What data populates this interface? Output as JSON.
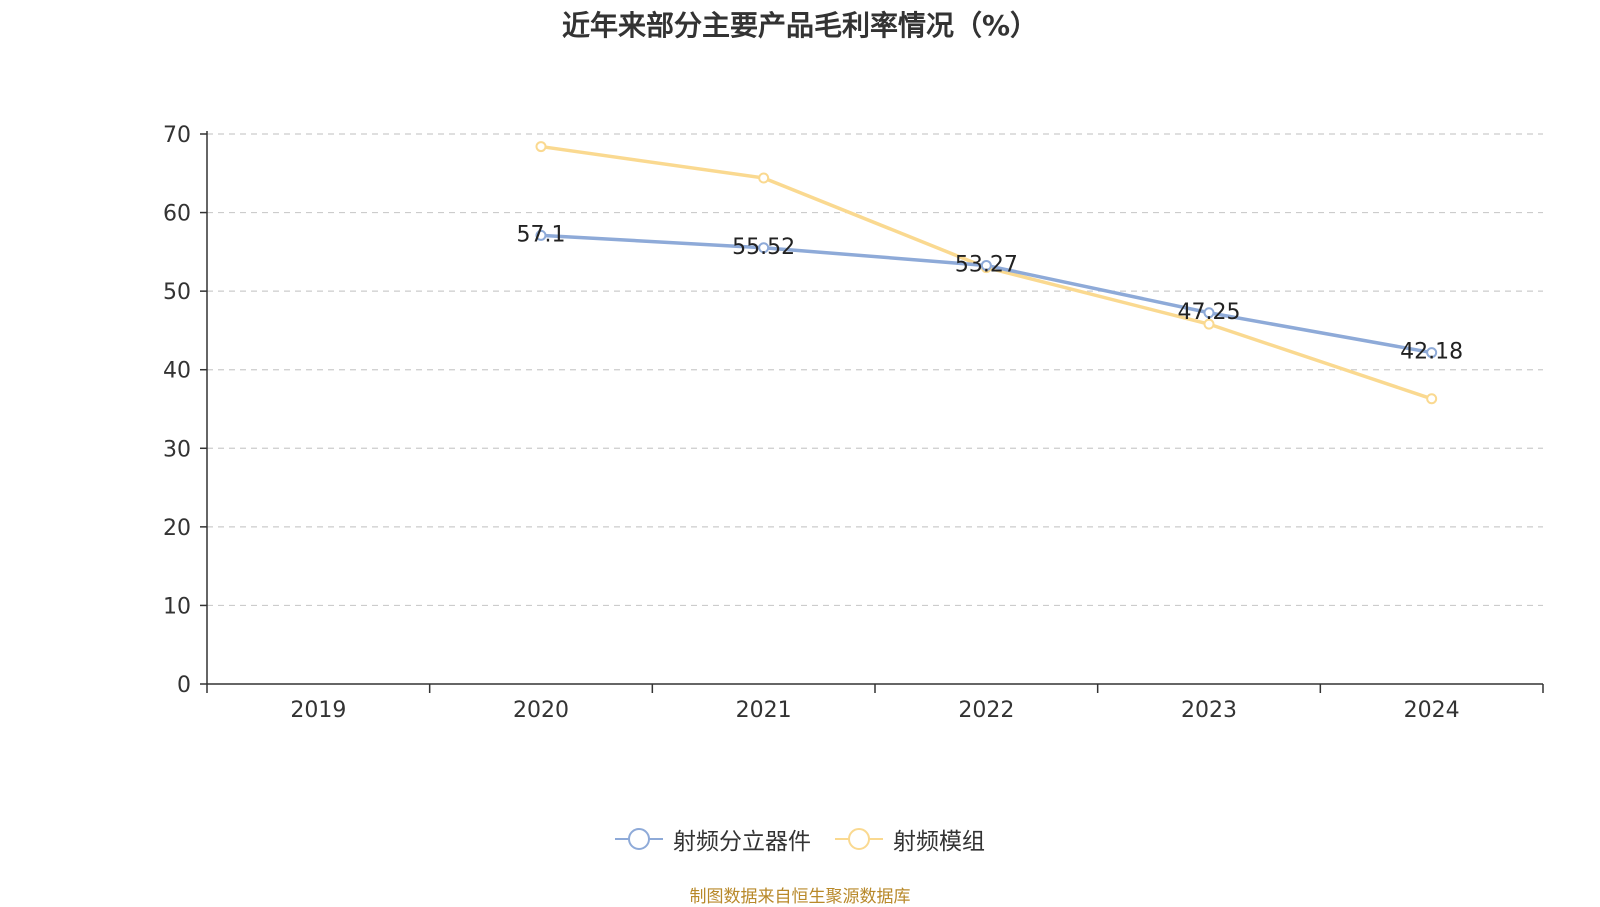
{
  "chart_data": {
    "type": "line",
    "title": "近年来部分主要产品毛利率情况（%）",
    "categories": [
      "2019",
      "2020",
      "2021",
      "2022",
      "2023",
      "2024"
    ],
    "ylim": [
      0,
      70
    ],
    "yticks": [
      0,
      10,
      20,
      30,
      40,
      50,
      60,
      70
    ],
    "grid": true,
    "legend_position": "bottom",
    "series": [
      {
        "name": "射频分立器件",
        "color": "#8eaad8",
        "values": [
          null,
          57.1,
          55.52,
          53.27,
          47.25,
          42.18
        ],
        "labels": [
          "",
          "57.1",
          "55.52",
          "53.27",
          "47.25",
          "42.18"
        ]
      },
      {
        "name": "射频模组",
        "color": "#fad990",
        "values": [
          null,
          68.4,
          64.4,
          53.0,
          45.8,
          36.3
        ],
        "labels": [
          "",
          "",
          "",
          "",
          "",
          ""
        ]
      }
    ]
  },
  "footer": {
    "source": "制图数据来自恒生聚源数据库"
  }
}
